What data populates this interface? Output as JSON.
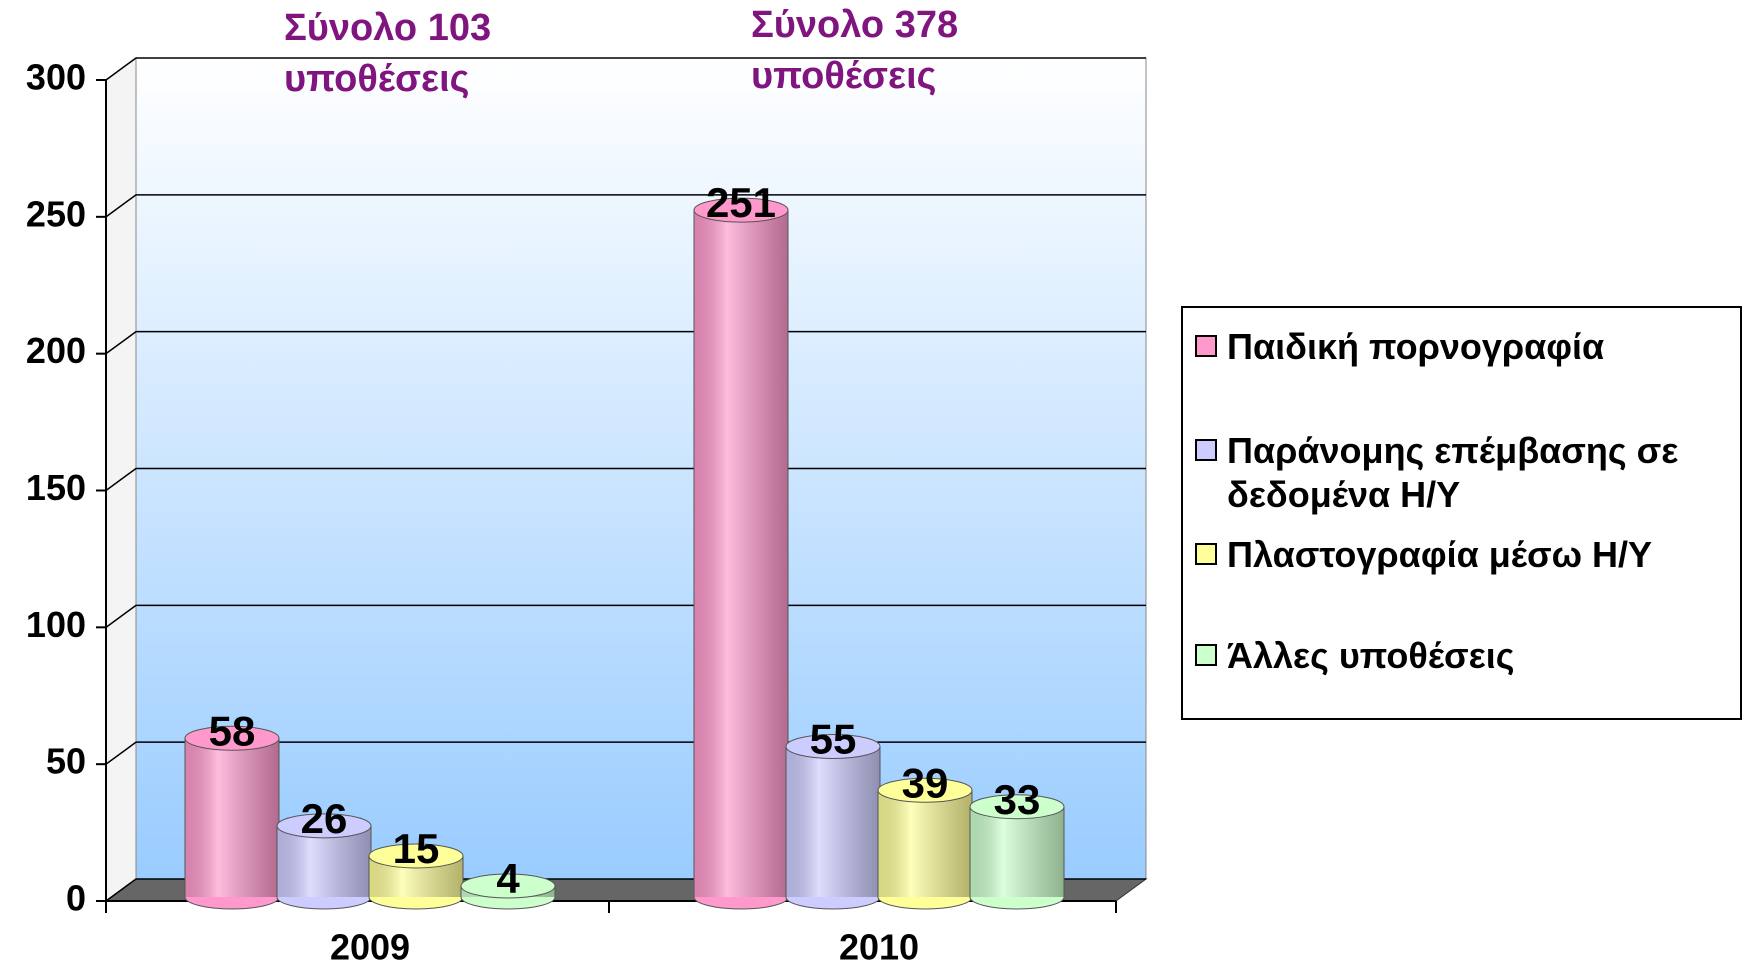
{
  "chart_data": {
    "type": "bar",
    "annotations": [
      [
        "Σύνολο 103",
        "υποθέσεις"
      ],
      [
        "Σύνολο 378",
        "υποθέσεις"
      ]
    ],
    "categories": [
      "2009",
      "2010"
    ],
    "series": [
      {
        "name": "Παιδική πορνογραφία",
        "color": "#ff99cc",
        "values": [
          58,
          251
        ]
      },
      {
        "name": "Παράνομης επέμβασης σε δεδομένα Η/Υ",
        "color": "#ccccff",
        "values": [
          26,
          55
        ]
      },
      {
        "name": "Πλαστογραφία μέσω Η/Υ",
        "color": "#ffff99",
        "values": [
          15,
          39
        ]
      },
      {
        "name": "Άλλες υποθέσεις",
        "color": "#ccffcc",
        "values": [
          4,
          33
        ]
      }
    ],
    "ylim": [
      0,
      300
    ],
    "yticks": [
      0,
      50,
      100,
      150,
      200,
      250,
      300
    ],
    "grid": true,
    "legend": "right"
  }
}
